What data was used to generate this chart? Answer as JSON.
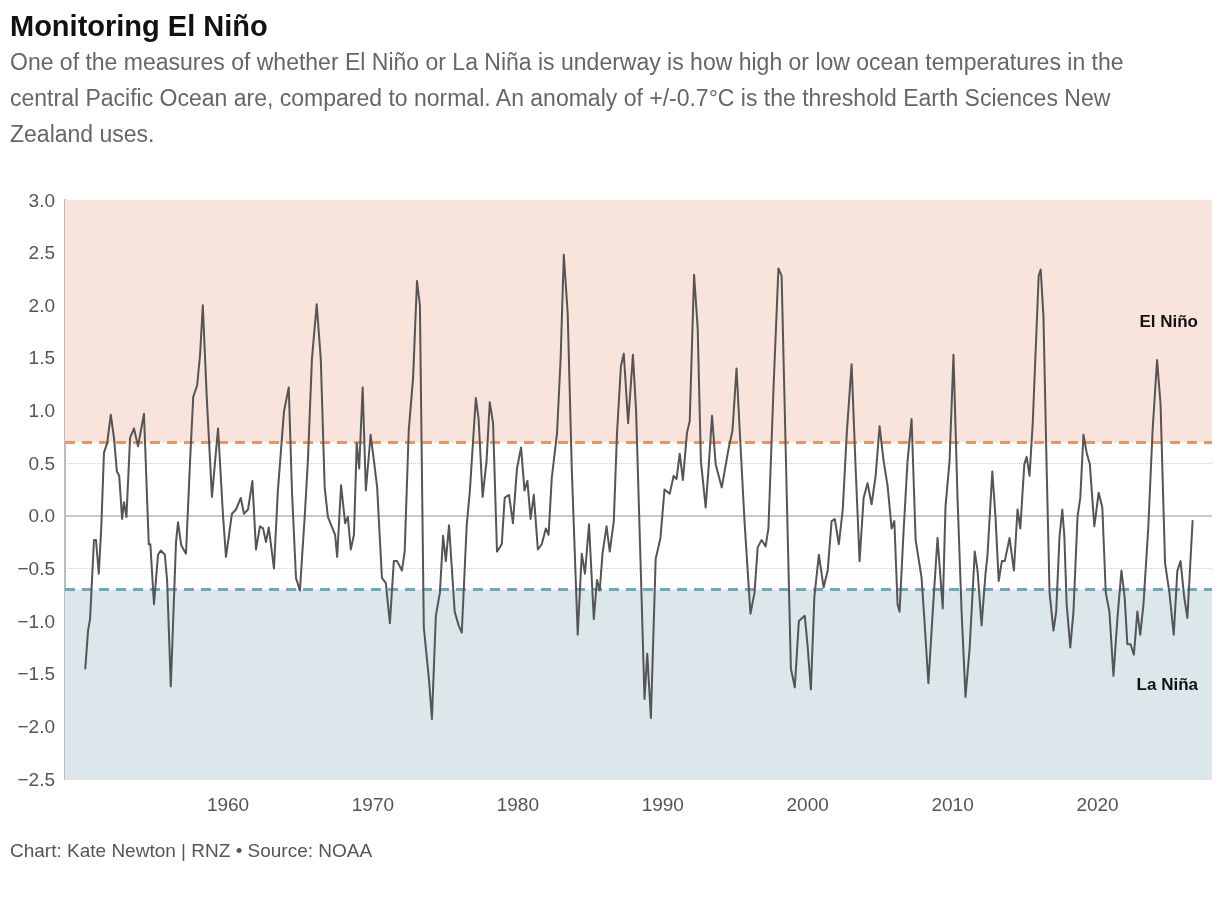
{
  "chart_data": {
    "type": "line",
    "title": "Monitoring El Niño",
    "subtitle": "One of the measures of whether El Niño or La Niña is underway is how high or low ocean temperatures in the central Pacific Ocean are, compared to normal. An anomaly of +/-0.7°C is the threshold Earth Sciences New Zealand uses.",
    "annotations": [
      "Chart: Kate Newton | RNZ • Source: NOAA"
    ],
    "xlim": [
      1948.75,
      2027.9
    ],
    "xticks": [
      1960,
      1970,
      1980,
      1990,
      2000,
      2010,
      2020
    ],
    "ylim": [
      -2.5,
      3
    ],
    "yticks": [
      {
        "value": -2.5,
        "label": "−2.5"
      },
      {
        "value": -2,
        "label": "−2.0"
      },
      {
        "value": -1.5,
        "label": "−1.5"
      },
      {
        "value": -1,
        "label": "−1.0"
      },
      {
        "value": -0.5,
        "label": "−0.5"
      },
      {
        "value": 0,
        "label": "0.0"
      },
      {
        "value": 0.5,
        "label": "0.5"
      },
      {
        "value": 1,
        "label": "1.0"
      },
      {
        "value": 1.5,
        "label": "1.5"
      },
      {
        "value": 2,
        "label": "2.0"
      },
      {
        "value": 2.5,
        "label": "2.5"
      },
      {
        "value": 3,
        "label": "3.0"
      }
    ],
    "grid": "y",
    "line_style": "solid",
    "bands": [
      {
        "axis": "y",
        "from": 0.7,
        "to": 3,
        "label": "El Niño",
        "color": "#f8e4da"
      },
      {
        "axis": "y",
        "from": -2.5,
        "to": -0.7,
        "label": "La Niña",
        "color": "#dbe7ea"
      }
    ],
    "ref_lines": [
      {
        "axis": "y",
        "value": 0.7,
        "color": "#e8956a",
        "line_style": "dashed"
      },
      {
        "axis": "y",
        "value": -0.7,
        "color": "#6fa8b8",
        "line_style": "dashed"
      },
      {
        "axis": "y",
        "value": 0,
        "color": "#bbbbbb",
        "line_style": "solid"
      }
    ],
    "x": [
      1950.15,
      1950.34,
      1950.48,
      1950.75,
      1950.89,
      1951.08,
      1951.25,
      1951.44,
      1951.66,
      1951.91,
      1952.13,
      1952.33,
      1952.49,
      1952.69,
      1952.82,
      1952.99,
      1953.24,
      1953.51,
      1953.79,
      1954.2,
      1954.53,
      1954.64,
      1954.89,
      1955.17,
      1955.36,
      1955.64,
      1955.8,
      1956.05,
      1956.41,
      1956.55,
      1956.77,
      1957.1,
      1957.38,
      1957.6,
      1957.87,
      1958.07,
      1958.26,
      1958.53,
      1958.89,
      1959.31,
      1959.66,
      1959.86,
      1960.27,
      1960.55,
      1960.88,
      1961.1,
      1961.38,
      1961.68,
      1961.93,
      1962.2,
      1962.42,
      1962.62,
      1962.81,
      1963.17,
      1963.44,
      1963.86,
      1964.19,
      1964.41,
      1964.69,
      1964.96,
      1965.29,
      1965.51,
      1965.79,
      1966.12,
      1966.4,
      1966.67,
      1966.89,
      1967.39,
      1967.53,
      1967.8,
      1968.08,
      1968.27,
      1968.47,
      1968.69,
      1968.88,
      1969.05,
      1969.29,
      1969.51,
      1969.84,
      1970.07,
      1970.29,
      1970.62,
      1970.89,
      1971.17,
      1971.44,
      1971.67,
      1972,
      1972.19,
      1972.47,
      1972.77,
      1973.04,
      1973.24,
      1973.51,
      1973.87,
      1974.07,
      1974.34,
      1974.62,
      1974.84,
      1975.03,
      1975.25,
      1975.64,
      1975.91,
      1976.13,
      1976.47,
      1976.69,
      1977.1,
      1977.29,
      1977.57,
      1977.84,
      1978.06,
      1978.29,
      1978.56,
      1978.89,
      1979.09,
      1979.39,
      1979.66,
      1979.94,
      1980.22,
      1980.46,
      1980.66,
      1980.88,
      1981.1,
      1981.38,
      1981.65,
      1981.93,
      1982.12,
      1982.34,
      1982.7,
      1982.95,
      1983.17,
      1983.44,
      1983.72,
      1984.13,
      1984.41,
      1984.63,
      1984.91,
      1985.24,
      1985.46,
      1985.65,
      1985.84,
      1986.12,
      1986.34,
      1986.62,
      1986.84,
      1987.11,
      1987.31,
      1987.61,
      1987.94,
      1988.16,
      1988.49,
      1988.74,
      1988.93,
      1989.18,
      1989.51,
      1989.84,
      1990.12,
      1990.48,
      1990.75,
      1990.95,
      1991.17,
      1991.39,
      1991.67,
      1991.86,
      1992.16,
      1992.41,
      1992.63,
      1992.96,
      1993.16,
      1993.4,
      1993.65,
      1994.07,
      1994.53,
      1994.81,
      1995.09,
      1995.31,
      1995.64,
      1996.05,
      1996.33,
      1996.55,
      1996.82,
      1997.1,
      1997.29,
      1997.65,
      1997.98,
      1998.2,
      1998.56,
      1998.84,
      1999.11,
      1999.39,
      1999.8,
      1999.99,
      2000.22,
      2000.46,
      2000.77,
      2001.1,
      2001.38,
      2001.65,
      2001.87,
      2002.15,
      2002.42,
      2002.7,
      2003.03,
      2003.31,
      2003.58,
      2003.86,
      2004.13,
      2004.41,
      2004.69,
      2004.96,
      2005.24,
      2005.51,
      2005.79,
      2005.98,
      2006.2,
      2006.34,
      2006.62,
      2006.89,
      2007.17,
      2007.45,
      2007.86,
      2008.05,
      2008.33,
      2008.63,
      2008.96,
      2009.32,
      2009.51,
      2009.79,
      2010.06,
      2010.34,
      2010.62,
      2010.89,
      2011.17,
      2011.53,
      2011.72,
      2012,
      2012.27,
      2012.41,
      2012.74,
      2012.96,
      2013.18,
      2013.4,
      2013.6,
      2013.93,
      2014.23,
      2014.48,
      2014.67,
      2014.95,
      2015.11,
      2015.31,
      2015.53,
      2015.72,
      2015.94,
      2016.08,
      2016.27,
      2016.49,
      2016.69,
      2016.96,
      2017.15,
      2017.38,
      2017.57,
      2017.71,
      2017.87,
      2018.12,
      2018.34,
      2018.62,
      2018.81,
      2019.03,
      2019.25,
      2019.47,
      2019.78,
      2020.08,
      2020.33,
      2020.57,
      2020.82,
      2021.1,
      2021.37,
      2021.65,
      2021.87,
      2022.06,
      2022.28,
      2022.51,
      2022.75,
      2022.95,
      2023.17,
      2023.5,
      2023.8,
      2024.11,
      2024.35,
      2024.66,
      2024.96,
      2025.26,
      2025.51,
      2025.73,
      2025.98,
      2026.2,
      2026.56
    ],
    "series": [
      {
        "color": "#555555",
        "values": [
          -1.45,
          -1.09,
          -0.98,
          -0.23,
          -0.23,
          -0.55,
          -0.12,
          0.6,
          0.69,
          0.96,
          0.74,
          0.42,
          0.38,
          -0.03,
          0.13,
          -0.01,
          0.74,
          0.83,
          0.66,
          0.97,
          -0.27,
          -0.27,
          -0.84,
          -0.37,
          -0.33,
          -0.37,
          -0.62,
          -1.62,
          -0.25,
          -0.06,
          -0.28,
          -0.36,
          0.52,
          1.13,
          1.24,
          1.53,
          2,
          1.13,
          0.18,
          0.83,
          -0.01,
          -0.39,
          0.02,
          0.06,
          0.17,
          0.02,
          0.06,
          0.33,
          -0.32,
          -0.1,
          -0.12,
          -0.25,
          -0.11,
          -0.5,
          0.24,
          0.99,
          1.22,
          0.24,
          -0.59,
          -0.71,
          -0.01,
          0.52,
          1.49,
          2.01,
          1.49,
          0.27,
          -0.01,
          -0.18,
          -0.39,
          0.29,
          -0.07,
          -0.01,
          -0.32,
          -0.18,
          0.69,
          0.45,
          1.22,
          0.24,
          0.77,
          0.52,
          0.27,
          -0.59,
          -0.64,
          -1.02,
          -0.43,
          -0.43,
          -0.52,
          -0.34,
          0.81,
          1.31,
          2.23,
          2,
          -1.06,
          -1.56,
          -1.93,
          -0.95,
          -0.73,
          -0.19,
          -0.43,
          -0.09,
          -0.91,
          -1.04,
          -1.11,
          -0.09,
          0.24,
          1.12,
          0.92,
          0.18,
          0.52,
          1.08,
          0.88,
          -0.34,
          -0.27,
          0.17,
          0.2,
          -0.07,
          0.45,
          0.65,
          0.24,
          0.33,
          -0.03,
          0.2,
          -0.32,
          -0.27,
          -0.12,
          -0.18,
          0.36,
          0.78,
          1.49,
          2.48,
          1.92,
          0.45,
          -1.13,
          -0.36,
          -0.55,
          -0.08,
          -0.98,
          -0.61,
          -0.71,
          -0.36,
          -0.1,
          -0.34,
          -0.05,
          0.78,
          1.42,
          1.54,
          0.88,
          1.53,
          0.99,
          -0.55,
          -1.74,
          -1.31,
          -1.92,
          -0.41,
          -0.21,
          0.25,
          0.21,
          0.38,
          0.35,
          0.59,
          0.34,
          0.79,
          0.9,
          2.29,
          1.78,
          0.52,
          0.08,
          0.45,
          0.95,
          0.49,
          0.27,
          0.63,
          0.81,
          1.4,
          0.81,
          -0.05,
          -0.93,
          -0.73,
          -0.3,
          -0.23,
          -0.29,
          -0.12,
          1.24,
          2.35,
          2.28,
          0.17,
          -1.45,
          -1.63,
          -1,
          -0.95,
          -1.23,
          -1.65,
          -0.77,
          -0.37,
          -0.68,
          -0.52,
          -0.05,
          -0.03,
          -0.27,
          0.06,
          0.79,
          1.44,
          0.45,
          -0.43,
          0.17,
          0.31,
          0.11,
          0.38,
          0.85,
          0.52,
          0.29,
          -0.12,
          -0.05,
          -0.84,
          -0.91,
          -0.14,
          0.52,
          0.92,
          -0.23,
          -0.59,
          -0.98,
          -1.59,
          -0.91,
          -0.21,
          -0.88,
          0.09,
          0.52,
          1.53,
          0.17,
          -0.91,
          -1.72,
          -1.27,
          -0.34,
          -0.52,
          -1.04,
          -0.55,
          -0.37,
          0.42,
          -0.01,
          -0.62,
          -0.43,
          -0.43,
          -0.21,
          -0.52,
          0.06,
          -0.12,
          0.49,
          0.56,
          0.38,
          0.88,
          1.53,
          2.28,
          2.34,
          1.89,
          0.45,
          -0.73,
          -1.09,
          -0.91,
          -0.19,
          0.06,
          -0.19,
          -0.84,
          -1.25,
          -0.91,
          -0.01,
          0.17,
          0.77,
          0.6,
          0.49,
          -0.1,
          0.22,
          0.08,
          -0.73,
          -0.91,
          -1.52,
          -0.98,
          -0.52,
          -0.77,
          -1.22,
          -1.22,
          -1.32,
          -0.91,
          -1.13,
          -0.84,
          -0.12,
          0.81,
          1.48,
          1.06,
          -0.45,
          -0.73,
          -1.13,
          -0.52,
          -0.43,
          -0.77,
          -0.97,
          -0.05
        ]
      }
    ]
  }
}
